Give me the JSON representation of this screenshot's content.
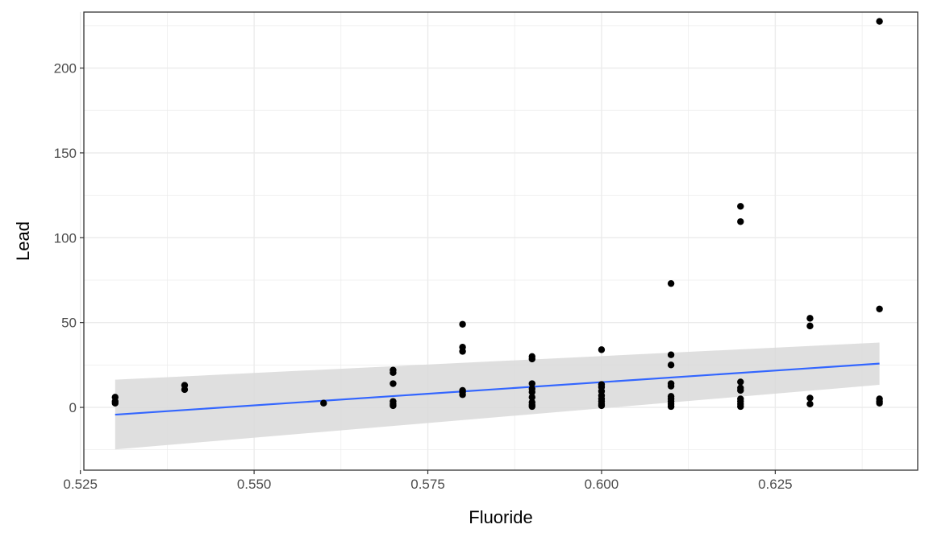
{
  "chart_data": {
    "type": "scatter",
    "xlabel": "Fluoride",
    "ylabel": "Lead",
    "xlim": [
      0.5255,
      0.6455
    ],
    "ylim": [
      -37,
      233
    ],
    "x_ticks": [
      0.525,
      0.55,
      0.575,
      0.6,
      0.625
    ],
    "x_tick_labels": [
      "0.525",
      "0.550",
      "0.575",
      "0.600",
      "0.625"
    ],
    "y_ticks": [
      0,
      50,
      100,
      150,
      200
    ],
    "y_tick_labels": [
      "0",
      "50",
      "100",
      "150",
      "200"
    ],
    "grid": true,
    "colors": {
      "points": "#000000",
      "fit_line": "#3366ff",
      "confidence_band": "#d9d9d9",
      "grid": "#ebebeb",
      "panel_border": "#333333"
    },
    "points": [
      {
        "x": 0.53,
        "y": 2.5
      },
      {
        "x": 0.53,
        "y": 3.5
      },
      {
        "x": 0.53,
        "y": 6
      },
      {
        "x": 0.54,
        "y": 10.5
      },
      {
        "x": 0.54,
        "y": 13
      },
      {
        "x": 0.56,
        "y": 2.5
      },
      {
        "x": 0.57,
        "y": 1
      },
      {
        "x": 0.57,
        "y": 2
      },
      {
        "x": 0.57,
        "y": 3.5
      },
      {
        "x": 0.57,
        "y": 14
      },
      {
        "x": 0.57,
        "y": 20.5
      },
      {
        "x": 0.57,
        "y": 22
      },
      {
        "x": 0.58,
        "y": 7.5
      },
      {
        "x": 0.58,
        "y": 9
      },
      {
        "x": 0.58,
        "y": 10
      },
      {
        "x": 0.58,
        "y": 33
      },
      {
        "x": 0.58,
        "y": 35.5
      },
      {
        "x": 0.58,
        "y": 49
      },
      {
        "x": 0.59,
        "y": 0.5
      },
      {
        "x": 0.59,
        "y": 1.5
      },
      {
        "x": 0.59,
        "y": 3
      },
      {
        "x": 0.59,
        "y": 6
      },
      {
        "x": 0.59,
        "y": 9
      },
      {
        "x": 0.59,
        "y": 11
      },
      {
        "x": 0.59,
        "y": 14
      },
      {
        "x": 0.59,
        "y": 28.5
      },
      {
        "x": 0.59,
        "y": 30
      },
      {
        "x": 0.6,
        "y": 1
      },
      {
        "x": 0.6,
        "y": 2
      },
      {
        "x": 0.6,
        "y": 3.5
      },
      {
        "x": 0.6,
        "y": 5
      },
      {
        "x": 0.6,
        "y": 7
      },
      {
        "x": 0.6,
        "y": 9.5
      },
      {
        "x": 0.6,
        "y": 12
      },
      {
        "x": 0.6,
        "y": 13.5
      },
      {
        "x": 0.6,
        "y": 34
      },
      {
        "x": 0.61,
        "y": 0.5
      },
      {
        "x": 0.61,
        "y": 2
      },
      {
        "x": 0.61,
        "y": 3.5
      },
      {
        "x": 0.61,
        "y": 5
      },
      {
        "x": 0.61,
        "y": 6.5
      },
      {
        "x": 0.61,
        "y": 12.5
      },
      {
        "x": 0.61,
        "y": 14
      },
      {
        "x": 0.61,
        "y": 25
      },
      {
        "x": 0.61,
        "y": 31
      },
      {
        "x": 0.61,
        "y": 73
      },
      {
        "x": 0.62,
        "y": 0.5
      },
      {
        "x": 0.62,
        "y": 2
      },
      {
        "x": 0.62,
        "y": 3.5
      },
      {
        "x": 0.62,
        "y": 5
      },
      {
        "x": 0.62,
        "y": 10
      },
      {
        "x": 0.62,
        "y": 11.5
      },
      {
        "x": 0.62,
        "y": 15
      },
      {
        "x": 0.62,
        "y": 109.5
      },
      {
        "x": 0.62,
        "y": 118.5
      },
      {
        "x": 0.63,
        "y": 2
      },
      {
        "x": 0.63,
        "y": 5.5
      },
      {
        "x": 0.63,
        "y": 48
      },
      {
        "x": 0.63,
        "y": 52.5
      },
      {
        "x": 0.64,
        "y": 2.5
      },
      {
        "x": 0.64,
        "y": 3.5
      },
      {
        "x": 0.64,
        "y": 5
      },
      {
        "x": 0.64,
        "y": 58
      },
      {
        "x": 0.64,
        "y": 227.5
      }
    ],
    "fit": {
      "method": "linear",
      "x": [
        0.53,
        0.64
      ],
      "y": [
        -4.3,
        25.8
      ],
      "ci_lower": [
        -24.8,
        13.3
      ],
      "ci_upper": [
        16.3,
        38.2
      ]
    }
  }
}
